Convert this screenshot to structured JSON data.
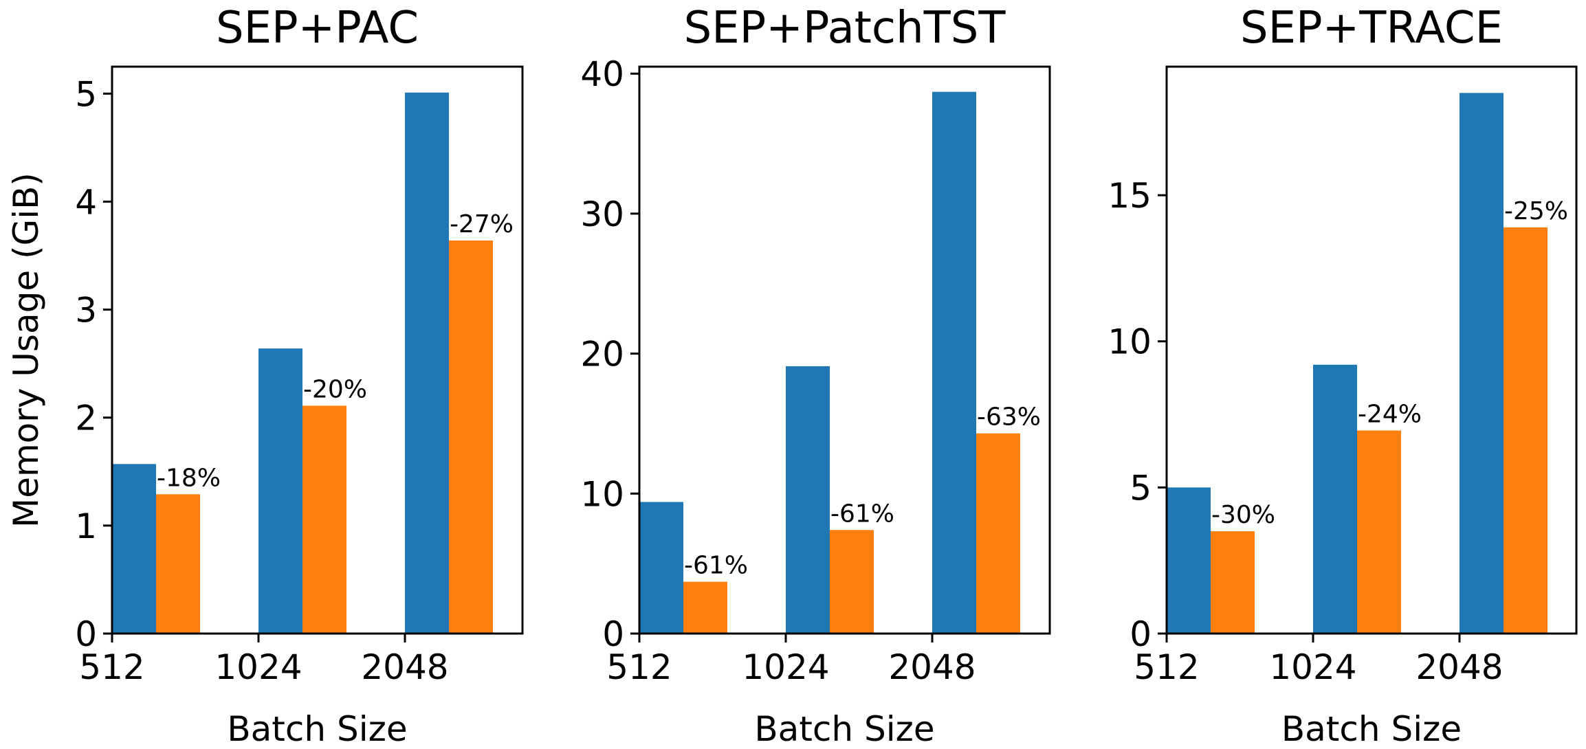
{
  "chart_data": [
    {
      "type": "bar",
      "title": "SEP+PAC",
      "xlabel": "Batch Size",
      "ylabel": "Memory Usage (GiB)",
      "categories": [
        "512",
        "1024",
        "2048"
      ],
      "ylim": [
        0,
        5.25
      ],
      "yticks": [
        0,
        1,
        2,
        3,
        4,
        5
      ],
      "grid": false,
      "series": [
        {
          "values": [
            1.57,
            2.64,
            5.01
          ],
          "color": "#1f77b4"
        },
        {
          "values": [
            1.29,
            2.11,
            3.64
          ],
          "color": "#ff7f0e"
        }
      ],
      "annotations": [
        "-18%",
        "-20%",
        "-27%"
      ]
    },
    {
      "type": "bar",
      "title": "SEP+PatchTST",
      "xlabel": "Batch Size",
      "ylabel": "",
      "categories": [
        "512",
        "1024",
        "2048"
      ],
      "ylim": [
        0,
        40.5
      ],
      "yticks": [
        0,
        10,
        20,
        30,
        40
      ],
      "grid": false,
      "series": [
        {
          "values": [
            9.4,
            19.1,
            38.7
          ],
          "color": "#1f77b4"
        },
        {
          "values": [
            3.7,
            7.4,
            14.3
          ],
          "color": "#ff7f0e"
        }
      ],
      "annotations": [
        "-61%",
        "-61%",
        "-63%"
      ]
    },
    {
      "type": "bar",
      "title": "SEP+TRACE",
      "xlabel": "Batch Size",
      "ylabel": "",
      "categories": [
        "512",
        "1024",
        "2048"
      ],
      "ylim": [
        0,
        19.4
      ],
      "yticks": [
        0,
        5,
        10,
        15
      ],
      "grid": false,
      "series": [
        {
          "values": [
            5.0,
            9.2,
            18.5
          ],
          "color": "#1f77b4"
        },
        {
          "values": [
            3.5,
            6.95,
            13.9
          ],
          "color": "#ff7f0e"
        }
      ],
      "annotations": [
        "-30%",
        "-24%",
        "-25%"
      ]
    }
  ]
}
